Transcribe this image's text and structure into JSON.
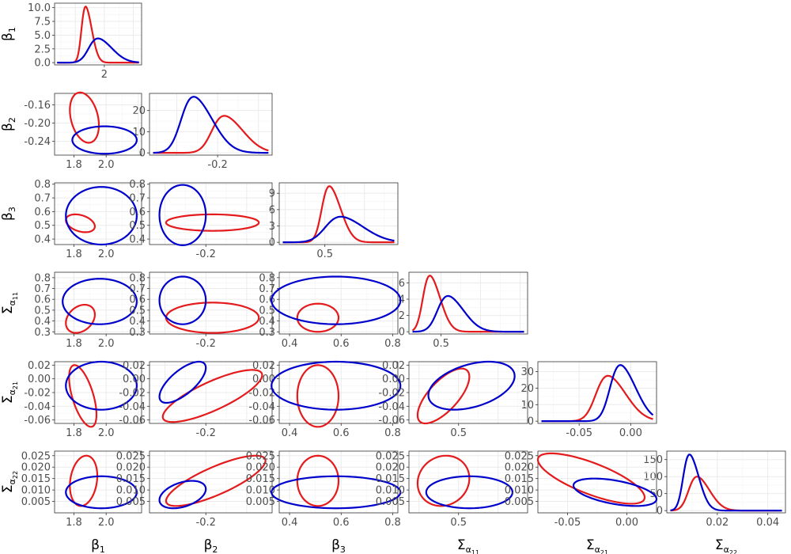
{
  "chart_data": {
    "type": "pairs",
    "variables": [
      {
        "base": "β",
        "sub": "1",
        "subsub": ""
      },
      {
        "base": "β",
        "sub": "2",
        "subsub": ""
      },
      {
        "base": "β",
        "sub": "3",
        "subsub": ""
      },
      {
        "base": "Σ",
        "sub": "α",
        "subsub": "11"
      },
      {
        "base": "Σ",
        "sub": "α",
        "subsub": "21"
      },
      {
        "base": "Σ",
        "sub": "α",
        "subsub": "22"
      }
    ],
    "series": [
      {
        "name": "",
        "color": "#e41a1c",
        "means": [
          1.85,
          -0.19,
          0.52,
          0.42,
          -0.022,
          0.012
        ],
        "sds": [
          0.04,
          0.022,
          0.04,
          0.06,
          0.014,
          0.004
        ],
        "density_peaks": [
          10.2,
          17.5,
          10.3,
          6.9,
          27.5,
          100
        ]
      },
      {
        "name": "",
        "color": "#0000cc",
        "means": [
          1.95,
          -0.235,
          0.57,
          0.55,
          -0.01,
          0.009
        ],
        "sds": [
          0.09,
          0.022,
          0.08,
          0.09,
          0.012,
          0.003
        ],
        "density_peaks": [
          4.4,
          26.5,
          4.7,
          4.4,
          34,
          165
        ]
      }
    ],
    "ellipses": [
      {
        "row": 2,
        "col": 1,
        "red": {
          "cx": 1.865,
          "cy": -0.188,
          "rx": 0.09,
          "ry": 0.055,
          "rho": -0.3
        },
        "blue": {
          "cx": 1.99,
          "cy": -0.237,
          "rx": 0.2,
          "ry": 0.03,
          "rho": 0
        }
      },
      {
        "row": 3,
        "col": 1,
        "red": {
          "cx": 1.84,
          "cy": 0.515,
          "rx": 0.09,
          "ry": 0.065,
          "rho": -0.35
        },
        "blue": {
          "cx": 1.97,
          "cy": 0.57,
          "rx": 0.22,
          "ry": 0.21,
          "rho": 0
        }
      },
      {
        "row": 3,
        "col": 2,
        "red": {
          "cx": -0.19,
          "cy": 0.52,
          "rx": 0.07,
          "ry": 0.06,
          "rho": 0
        },
        "blue": {
          "cx": -0.235,
          "cy": 0.575,
          "rx": 0.035,
          "ry": 0.22,
          "rho": 0
        }
      },
      {
        "row": 4,
        "col": 1,
        "red": {
          "cx": 1.84,
          "cy": 0.42,
          "rx": 0.09,
          "ry": 0.13,
          "rho": 0.3
        },
        "blue": {
          "cx": 1.96,
          "cy": 0.58,
          "rx": 0.23,
          "ry": 0.21,
          "rho": 0
        }
      },
      {
        "row": 4,
        "col": 2,
        "red": {
          "cx": -0.19,
          "cy": 0.43,
          "rx": 0.07,
          "ry": 0.14,
          "rho": 0
        },
        "blue": {
          "cx": -0.235,
          "cy": 0.59,
          "rx": 0.035,
          "ry": 0.22,
          "rho": 0
        }
      },
      {
        "row": 4,
        "col": 3,
        "red": {
          "cx": 0.51,
          "cy": 0.43,
          "rx": 0.08,
          "ry": 0.13,
          "rho": 0
        },
        "blue": {
          "cx": 0.58,
          "cy": 0.59,
          "rx": 0.25,
          "ry": 0.22,
          "rho": 0
        }
      },
      {
        "row": 5,
        "col": 1,
        "red": {
          "cx": 1.855,
          "cy": -0.025,
          "rx": 0.085,
          "ry": 0.045,
          "rho": -0.6
        },
        "blue": {
          "cx": 1.97,
          "cy": -0.01,
          "rx": 0.22,
          "ry": 0.035,
          "rho": 0
        }
      },
      {
        "row": 5,
        "col": 2,
        "red": {
          "cx": -0.19,
          "cy": -0.025,
          "rx": 0.075,
          "ry": 0.038,
          "rho": 0.8
        },
        "blue": {
          "cx": -0.235,
          "cy": -0.005,
          "rx": 0.035,
          "ry": 0.03,
          "rho": 0.7
        }
      },
      {
        "row": 5,
        "col": 3,
        "red": {
          "cx": 0.51,
          "cy": -0.025,
          "rx": 0.08,
          "ry": 0.045,
          "rho": 0
        },
        "blue": {
          "cx": 0.58,
          "cy": -0.01,
          "rx": 0.25,
          "ry": 0.035,
          "rho": 0
        }
      },
      {
        "row": 5,
        "col": 4,
        "red": {
          "cx": 0.43,
          "cy": -0.025,
          "rx": 0.12,
          "ry": 0.04,
          "rho": 0.7
        },
        "blue": {
          "cx": 0.56,
          "cy": -0.01,
          "rx": 0.2,
          "ry": 0.035,
          "rho": 0.4
        }
      },
      {
        "row": 6,
        "col": 1,
        "red": {
          "cx": 1.86,
          "cy": 0.014,
          "rx": 0.085,
          "ry": 0.011,
          "rho": 0.2
        },
        "blue": {
          "cx": 1.97,
          "cy": 0.009,
          "rx": 0.22,
          "ry": 0.007,
          "rho": 0
        }
      },
      {
        "row": 6,
        "col": 2,
        "red": {
          "cx": -0.185,
          "cy": 0.014,
          "rx": 0.075,
          "ry": 0.011,
          "rho": 0.8
        },
        "blue": {
          "cx": -0.235,
          "cy": 0.008,
          "rx": 0.035,
          "ry": 0.006,
          "rho": 0.4
        }
      },
      {
        "row": 6,
        "col": 3,
        "red": {
          "cx": 0.51,
          "cy": 0.014,
          "rx": 0.08,
          "ry": 0.011,
          "rho": 0
        },
        "blue": {
          "cx": 0.58,
          "cy": 0.009,
          "rx": 0.25,
          "ry": 0.007,
          "rho": 0
        }
      },
      {
        "row": 6,
        "col": 4,
        "red": {
          "cx": 0.43,
          "cy": 0.014,
          "rx": 0.12,
          "ry": 0.011,
          "rho": 0.1
        },
        "blue": {
          "cx": 0.55,
          "cy": 0.009,
          "rx": 0.2,
          "ry": 0.007,
          "rho": 0
        }
      },
      {
        "row": 6,
        "col": 5,
        "red": {
          "cx": -0.03,
          "cy": 0.015,
          "rx": 0.045,
          "ry": 0.011,
          "rho": -0.75
        },
        "blue": {
          "cx": -0.01,
          "cy": 0.009,
          "rx": 0.035,
          "ry": 0.006,
          "rho": -0.5
        }
      }
    ],
    "x_ticks": [
      {
        "values": [
          2
        ],
        "labels": [
          "2"
        ]
      },
      {
        "values": [
          -0.2
        ],
        "labels": [
          "-0.2"
        ]
      },
      {
        "values": [
          0.5
        ],
        "labels": [
          "0.5"
        ]
      },
      {
        "values": [
          0.5
        ],
        "labels": [
          "0.5"
        ]
      },
      {
        "values": [
          -0.05,
          0.0
        ],
        "labels": [
          "-0.05",
          "0.00"
        ]
      },
      {
        "values": [
          0.02,
          0.04
        ],
        "labels": [
          "0.02",
          "0.04"
        ]
      }
    ],
    "offdiag_x_ticks": [
      {
        "values": [
          1.8,
          2.0
        ],
        "labels": [
          "1.8",
          "2.0"
        ]
      },
      {
        "values": [
          -0.2
        ],
        "labels": [
          "-0.2"
        ]
      },
      {
        "values": [
          0.4,
          0.6,
          0.8
        ],
        "labels": [
          "0.4",
          "0.6",
          "0.8"
        ]
      },
      {
        "values": [
          0.5
        ],
        "labels": [
          "0.5"
        ]
      },
      {
        "values": [
          -0.05,
          0.0
        ],
        "labels": [
          "-0.05",
          "0.00"
        ]
      }
    ],
    "diag_y_ticks": [
      {
        "values": [
          0,
          2.5,
          5,
          7.5,
          10
        ],
        "labels": [
          "0.0",
          "2.5",
          "5.0",
          "7.5",
          "10.0"
        ]
      },
      {
        "values": [
          0,
          10,
          20
        ],
        "labels": [
          "0",
          "10",
          "20"
        ]
      },
      {
        "values": [
          0,
          3,
          6,
          9
        ],
        "labels": [
          "0",
          "3",
          "6",
          "9"
        ]
      },
      {
        "values": [
          0,
          2,
          4,
          6
        ],
        "labels": [
          "0",
          "2",
          "4",
          "6"
        ]
      },
      {
        "values": [
          0,
          10,
          20,
          30
        ],
        "labels": [
          "0",
          "10",
          "20",
          "30"
        ]
      },
      {
        "values": [
          0,
          50,
          100,
          150
        ],
        "labels": [
          "0",
          "50",
          "100",
          "150"
        ]
      }
    ],
    "row_y_ticks": [
      null,
      {
        "values": [
          -0.16,
          -0.2,
          -0.24
        ],
        "labels": [
          "-0.16",
          "-0.20",
          "-0.24"
        ]
      },
      {
        "values": [
          0.4,
          0.5,
          0.6,
          0.7,
          0.8
        ],
        "labels": [
          "0.4",
          "0.5",
          "0.6",
          "0.7",
          "0.8"
        ]
      },
      {
        "values": [
          0.3,
          0.4,
          0.5,
          0.6,
          0.7,
          0.8
        ],
        "labels": [
          "0.3",
          "0.4",
          "0.5",
          "0.6",
          "0.7",
          "0.8"
        ]
      },
      {
        "values": [
          0.02,
          0.0,
          -0.02,
          -0.04,
          -0.06
        ],
        "labels": [
          "0.02",
          "0.00",
          "-0.02",
          "-0.04",
          "-0.06"
        ]
      },
      {
        "values": [
          0.025,
          0.02,
          0.015,
          0.01,
          0.005
        ],
        "labels": [
          "0.025",
          "0.020",
          "0.015",
          "0.010",
          "0.005"
        ]
      }
    ],
    "x_ranges": [
      [
        1.6,
        2.3
      ],
      [
        -0.3,
        -0.12
      ],
      [
        0.3,
        0.82
      ],
      [
        0.27,
        1.12
      ],
      [
        -0.09,
        0.025
      ],
      [
        0.0,
        0.047
      ]
    ],
    "offdiag_x_ranges": [
      [
        1.68,
        2.22
      ],
      [
        -0.285,
        -0.1
      ],
      [
        0.36,
        0.82
      ],
      [
        0.27,
        0.82
      ],
      [
        -0.075,
        0.025
      ]
    ],
    "row_y_ranges": [
      null,
      [
        -0.27,
        -0.135
      ],
      [
        0.36,
        0.81
      ],
      [
        0.28,
        0.85
      ],
      [
        -0.065,
        0.025
      ],
      [
        0.0,
        0.027
      ]
    ],
    "grid": true,
    "legend": "none"
  }
}
